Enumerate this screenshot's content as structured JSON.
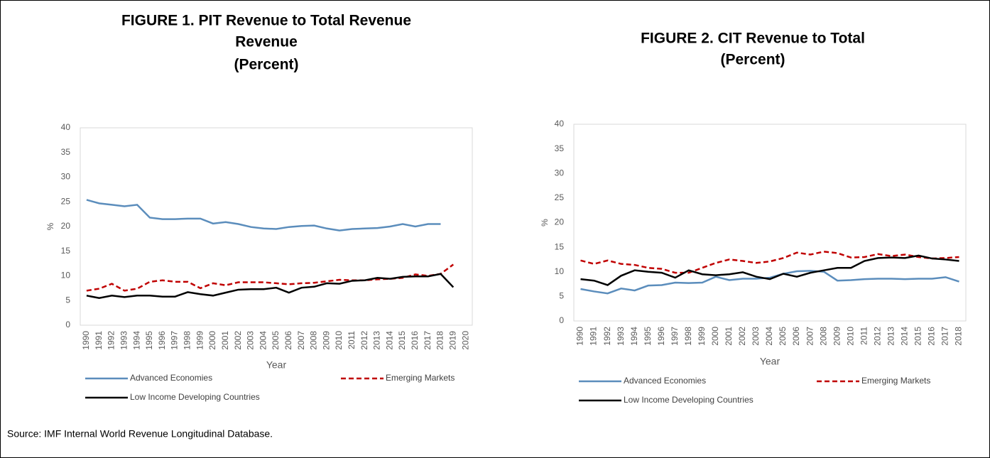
{
  "chart_data": [
    {
      "type": "line",
      "title": [
        "FIGURE 1. PIT Revenue to Total Revenue",
        "Revenue",
        "(Percent)"
      ],
      "x_label": "Year",
      "y_label": "%",
      "categories": [
        "1990",
        "1991",
        "1992",
        "1993",
        "1994",
        "1995",
        "1996",
        "1997",
        "1998",
        "1999",
        "2000",
        "2001",
        "2002",
        "2003",
        "2004",
        "2005",
        "2006",
        "2007",
        "2008",
        "2009",
        "2010",
        "2011",
        "2012",
        "2013",
        "2014",
        "2015",
        "2016",
        "2017",
        "2018",
        "2019",
        "2020"
      ],
      "ylim": [
        0,
        40
      ],
      "yticks": [
        0,
        5,
        10,
        15,
        20,
        25,
        30,
        35,
        40
      ],
      "series": [
        {
          "name": "Advanced Economies",
          "color": "#5b8dbc",
          "style": "solid",
          "values": [
            25.4,
            24.7,
            24.4,
            24.1,
            24.4,
            21.8,
            21.5,
            21.5,
            21.6,
            21.6,
            20.6,
            20.9,
            20.5,
            19.9,
            19.6,
            19.5,
            19.9,
            20.1,
            20.2,
            19.6,
            19.2,
            19.5,
            19.6,
            19.7,
            20.0,
            20.5,
            20.0,
            20.5,
            20.5,
            null,
            null
          ]
        },
        {
          "name": "Emerging Markets",
          "color": "#c00000",
          "style": "dashed",
          "values": [
            7.0,
            7.4,
            8.4,
            7.0,
            7.4,
            8.8,
            9.1,
            8.8,
            8.8,
            7.5,
            8.5,
            8.1,
            8.7,
            8.7,
            8.7,
            8.5,
            8.3,
            8.5,
            8.6,
            8.9,
            9.2,
            9.1,
            9.1,
            9.3,
            9.4,
            9.6,
            10.3,
            10.0,
            10.4,
            12.3,
            null
          ]
        },
        {
          "name": "Low Income Developing Countries",
          "color": "#000000",
          "style": "solid",
          "values": [
            6.0,
            5.5,
            6.0,
            5.7,
            6.0,
            6.0,
            5.8,
            5.8,
            6.7,
            6.3,
            6.0,
            6.6,
            7.2,
            7.3,
            7.3,
            7.6,
            6.6,
            7.6,
            7.8,
            8.5,
            8.4,
            9.0,
            9.1,
            9.6,
            9.4,
            9.8,
            9.9,
            9.9,
            10.4,
            7.7,
            null
          ]
        }
      ]
    },
    {
      "type": "line",
      "title": [
        "FIGURE 2. CIT Revenue to Total",
        "(Percent)"
      ],
      "x_label": "Year",
      "y_label": "%",
      "categories": [
        "1990",
        "1991",
        "1992",
        "1993",
        "1994",
        "1995",
        "1996",
        "1997",
        "1998",
        "1999",
        "2000",
        "2001",
        "2002",
        "2003",
        "2004",
        "2005",
        "2006",
        "2007",
        "2008",
        "2009",
        "2010",
        "2011",
        "2012",
        "2013",
        "2014",
        "2015",
        "2016",
        "2017",
        "2018"
      ],
      "ylim": [
        0,
        40
      ],
      "yticks": [
        0,
        5,
        10,
        15,
        20,
        25,
        30,
        35,
        40
      ],
      "series": [
        {
          "name": "Advanced Economies",
          "color": "#5b8dbc",
          "style": "solid",
          "values": [
            6.5,
            6.0,
            5.6,
            6.6,
            6.2,
            7.2,
            7.3,
            7.8,
            7.7,
            7.8,
            9.0,
            8.3,
            8.6,
            8.6,
            8.8,
            9.6,
            10.1,
            10.2,
            10.0,
            8.2,
            8.3,
            8.5,
            8.6,
            8.6,
            8.5,
            8.6,
            8.6,
            8.9,
            8.0
          ]
        },
        {
          "name": "Emerging Markets",
          "color": "#c00000",
          "style": "dashed",
          "values": [
            12.3,
            11.6,
            12.3,
            11.6,
            11.4,
            10.8,
            10.6,
            9.8,
            9.8,
            10.8,
            11.8,
            12.5,
            12.2,
            11.8,
            12.1,
            12.8,
            13.9,
            13.5,
            14.1,
            13.8,
            12.9,
            13.0,
            13.6,
            13.2,
            13.5,
            13.0,
            12.7,
            12.8,
            13.0
          ]
        },
        {
          "name": "Low Income Developing Countries",
          "color": "#000000",
          "style": "solid",
          "values": [
            8.5,
            8.2,
            7.3,
            9.2,
            10.3,
            10.0,
            9.8,
            8.8,
            10.3,
            9.5,
            9.3,
            9.5,
            9.9,
            9.0,
            8.5,
            9.6,
            9.0,
            9.8,
            10.3,
            10.8,
            10.8,
            12.2,
            12.8,
            12.9,
            12.8,
            13.3,
            12.7,
            12.5,
            12.2
          ]
        }
      ]
    }
  ],
  "source": "Source: IMF Internal World Revenue Longitudinal Database."
}
